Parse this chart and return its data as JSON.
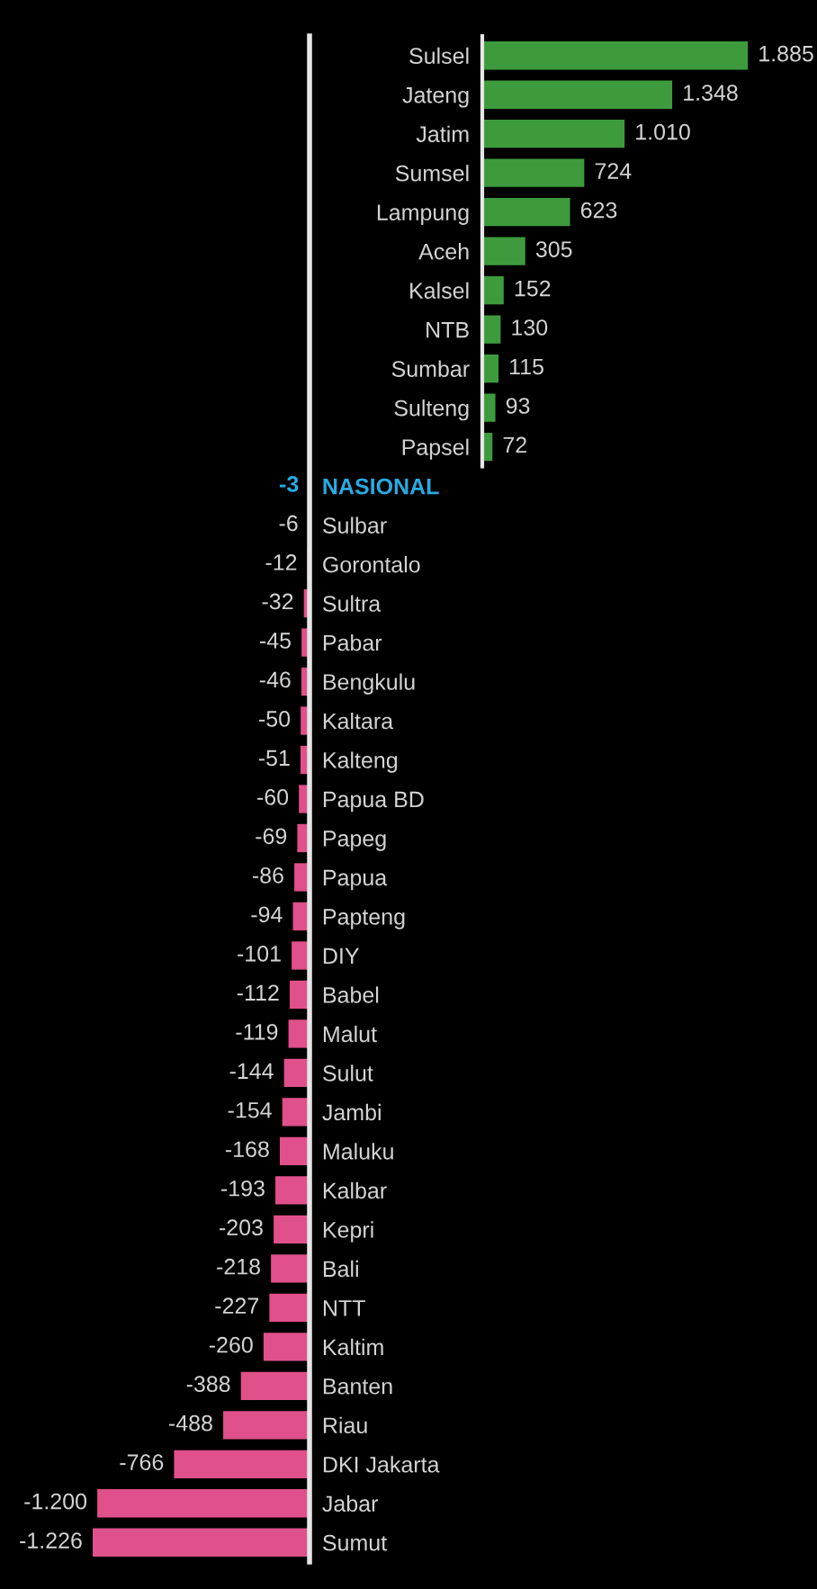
{
  "chart_data": [
    {
      "type": "bar",
      "orientation": "horizontal",
      "categories": [
        "Sulsel",
        "Jateng",
        "Jatim",
        "Sumsel",
        "Lampung",
        "Aceh",
        "Kalsel",
        "NTB",
        "Sumbar",
        "Sulteng",
        "Papsel"
      ],
      "values": [
        1885,
        1348,
        1010,
        724,
        623,
        305,
        152,
        130,
        115,
        93,
        72
      ],
      "value_labels": [
        "1.885",
        "1.348",
        "1.010",
        "724",
        "623",
        "305",
        "152",
        "130",
        "115",
        "93",
        "72"
      ],
      "colors": [
        "#3d9b3d",
        "#3d9b3d",
        "#3d9b3d",
        "#3d9b3d",
        "#3d9b3d",
        "#3d9b3d",
        "#3d9b3d",
        "#3d9b3d",
        "#3d9b3d",
        "#3d9b3d",
        "#3d9b3d"
      ],
      "xlim": [
        0,
        2350
      ],
      "tick_labels": "y",
      "grid": false,
      "legend": false
    },
    {
      "type": "bar",
      "orientation": "horizontal",
      "categories": [
        "NASIONAL",
        "Sulbar",
        "Gorontalo",
        "Sultra",
        "Pabar",
        "Bengkulu",
        "Kaltara",
        "Kalteng",
        "Papua BD",
        "Papeg",
        "Papua",
        "Papteng",
        "DIY",
        "Babel",
        "Malut",
        "Sulut",
        "Jambi",
        "Maluku",
        "Kalbar",
        "Kepri",
        "Bali",
        "NTT",
        "Kaltim",
        "Banten",
        "Riau",
        "DKI Jakarta",
        "Jabar",
        "Sumut"
      ],
      "values": [
        -3,
        -6,
        -12,
        -32,
        -45,
        -46,
        -50,
        -51,
        -60,
        -69,
        -86,
        -94,
        -101,
        -112,
        -119,
        -144,
        -154,
        -168,
        -193,
        -203,
        -218,
        -227,
        -260,
        -388,
        -488,
        -766,
        -1200,
        -1226
      ],
      "value_labels": [
        "-3",
        "-6",
        "-12",
        "-32",
        "-45",
        "-46",
        "-50",
        "-51",
        "-60",
        "-69",
        "-86",
        "-94",
        "-101",
        "-112",
        "-119",
        "-144",
        "-154",
        "-168",
        "-193",
        "-203",
        "-218",
        "-227",
        "-260",
        "-388",
        "-488",
        "-766",
        "-1.200",
        "-1.226"
      ],
      "colors": [
        "#29abe2",
        "#e0508a",
        "#e0508a",
        "#e0508a",
        "#e0508a",
        "#e0508a",
        "#e0508a",
        "#e0508a",
        "#e0508a",
        "#e0508a",
        "#e0508a",
        "#e0508a",
        "#e0508a",
        "#e0508a",
        "#e0508a",
        "#e0508a",
        "#e0508a",
        "#e0508a",
        "#e0508a",
        "#e0508a",
        "#e0508a",
        "#e0508a",
        "#e0508a",
        "#e0508a",
        "#e0508a",
        "#e0508a",
        "#e0508a",
        "#e0508a"
      ],
      "xlim": [
        -1750,
        0
      ],
      "tick_labels": "y",
      "grid": false,
      "legend": false
    }
  ]
}
